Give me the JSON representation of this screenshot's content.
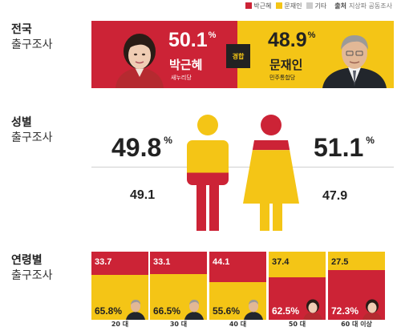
{
  "legend": {
    "items": [
      {
        "label": "박근혜",
        "color": "#cc2336"
      },
      {
        "label": "문재인",
        "color": "#f4c516"
      },
      {
        "label": "기타",
        "color": "#cccccc"
      }
    ],
    "source_label": "출처",
    "source": "지상파 공동조사"
  },
  "sections": {
    "national": {
      "line1": "전국",
      "line2": "출구조사"
    },
    "gender": {
      "line1": "성별",
      "line2": "출구조사"
    },
    "age": {
      "line1": "연령별",
      "line2": "출구조사"
    }
  },
  "candidates": {
    "park": {
      "name": "박근혜",
      "party": "새누리당",
      "color": "#cc2336"
    },
    "moon": {
      "name": "문재인",
      "party": "민주통합당",
      "color": "#f4c516"
    }
  },
  "contest_label": "경합",
  "percent_sign": "%",
  "chart_data": [
    {
      "type": "bar",
      "name": "national",
      "categories": [
        "전국"
      ],
      "series": [
        {
          "name": "박근혜",
          "values": [
            50.1
          ]
        },
        {
          "name": "문재인",
          "values": [
            48.9
          ]
        }
      ],
      "display": [
        "50.1",
        "48.9"
      ]
    },
    {
      "type": "bar",
      "name": "gender",
      "categories": [
        "남성",
        "여성"
      ],
      "series": [
        {
          "name": "박근혜",
          "values": [
            49.8,
            51.1
          ]
        },
        {
          "name": "문재인",
          "values": [
            49.1,
            47.9
          ]
        }
      ],
      "display": {
        "male_park": "49.8",
        "male_moon": "49.1",
        "female_park": "51.1",
        "female_moon": "47.9"
      }
    },
    {
      "type": "bar",
      "name": "age",
      "categories": [
        "20 대",
        "30 대",
        "40 대",
        "50 대",
        "60 대 이상"
      ],
      "series": [
        {
          "name": "박근혜",
          "values": [
            33.7,
            33.1,
            44.1,
            62.5,
            72.3
          ]
        },
        {
          "name": "문재인",
          "values": [
            65.8,
            66.5,
            55.6,
            37.4,
            27.5
          ]
        }
      ],
      "labels": [
        {
          "top": "33.7",
          "bottom": "65.8",
          "winner": "문재인"
        },
        {
          "top": "33.1",
          "bottom": "66.5",
          "winner": "문재인"
        },
        {
          "top": "44.1",
          "bottom": "55.6",
          "winner": "문재인"
        },
        {
          "top": "37.4",
          "bottom": "62.5",
          "winner": "박근혜"
        },
        {
          "top": "27.5",
          "bottom": "72.3",
          "winner": "박근혜"
        }
      ]
    }
  ]
}
